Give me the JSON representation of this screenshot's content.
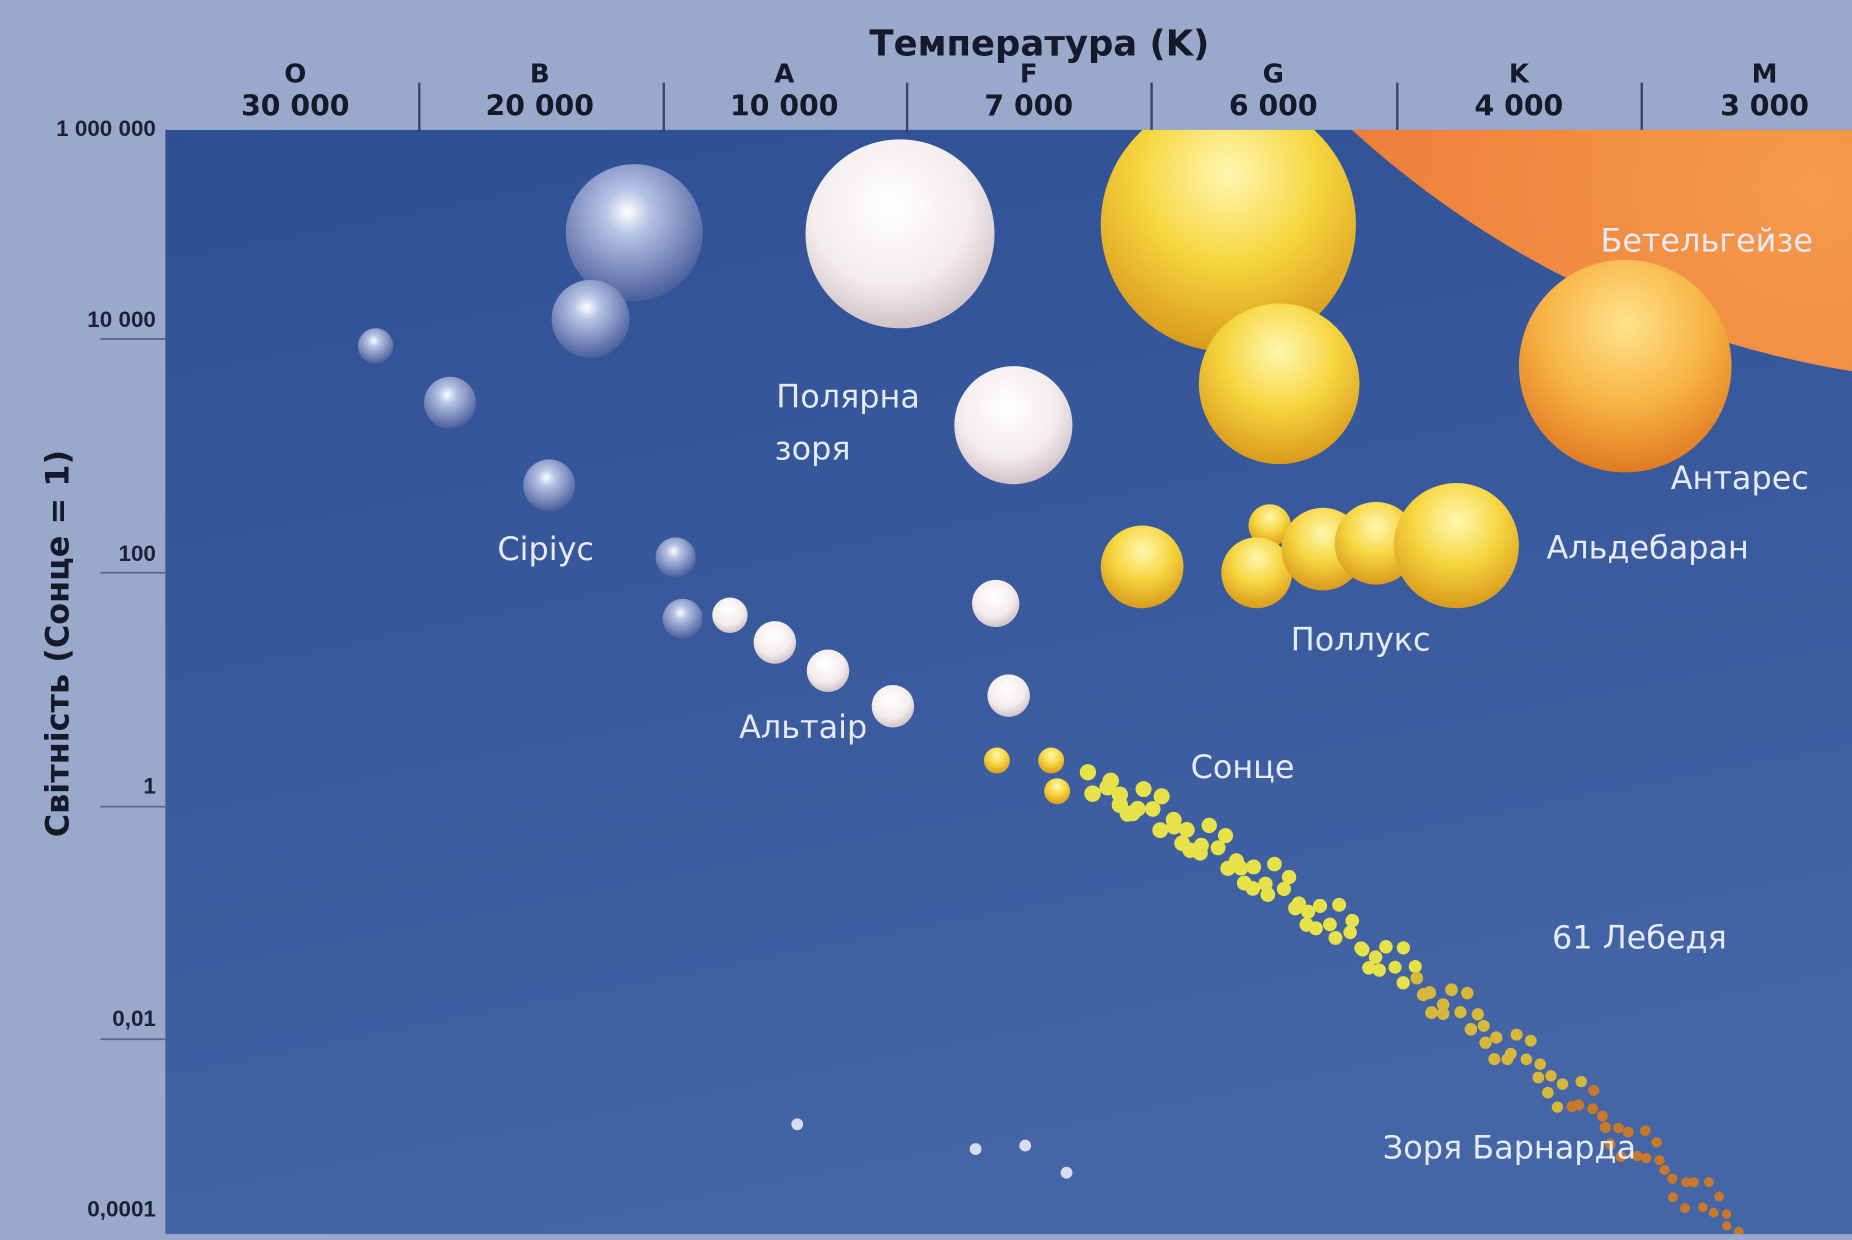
{
  "header": {
    "title": "Температура (K)",
    "classes": [
      {
        "letter": "O",
        "temperature": "30 000"
      },
      {
        "letter": "B",
        "temperature": "20 000"
      },
      {
        "letter": "A",
        "temperature": "10 000"
      },
      {
        "letter": "F",
        "temperature": "7 000"
      },
      {
        "letter": "G",
        "temperature": "6 000"
      },
      {
        "letter": "K",
        "temperature": "4 000"
      },
      {
        "letter": "M",
        "temperature": "3 000"
      }
    ]
  },
  "y_axis": {
    "title": "Світність (Сонце = 1)",
    "labels": [
      "1 000 000",
      "10 000",
      "100",
      "1",
      "0,01",
      "0,0001"
    ]
  },
  "stars": [
    {
      "lines": [
        "Бетельгейзе"
      ]
    },
    {
      "lines": [
        "Полярна",
        "зоря"
      ]
    },
    {
      "lines": [
        "Антарес"
      ]
    },
    {
      "lines": [
        "Сіріус"
      ]
    },
    {
      "lines": [
        "Альдебаран"
      ]
    },
    {
      "lines": [
        "Поллукс"
      ]
    },
    {
      "lines": [
        "Альтаір"
      ]
    },
    {
      "lines": [
        "Сонце"
      ]
    },
    {
      "lines": [
        "61 Лебедя"
      ]
    },
    {
      "lines": [
        "Зоря Барнарда"
      ]
    }
  ]
}
